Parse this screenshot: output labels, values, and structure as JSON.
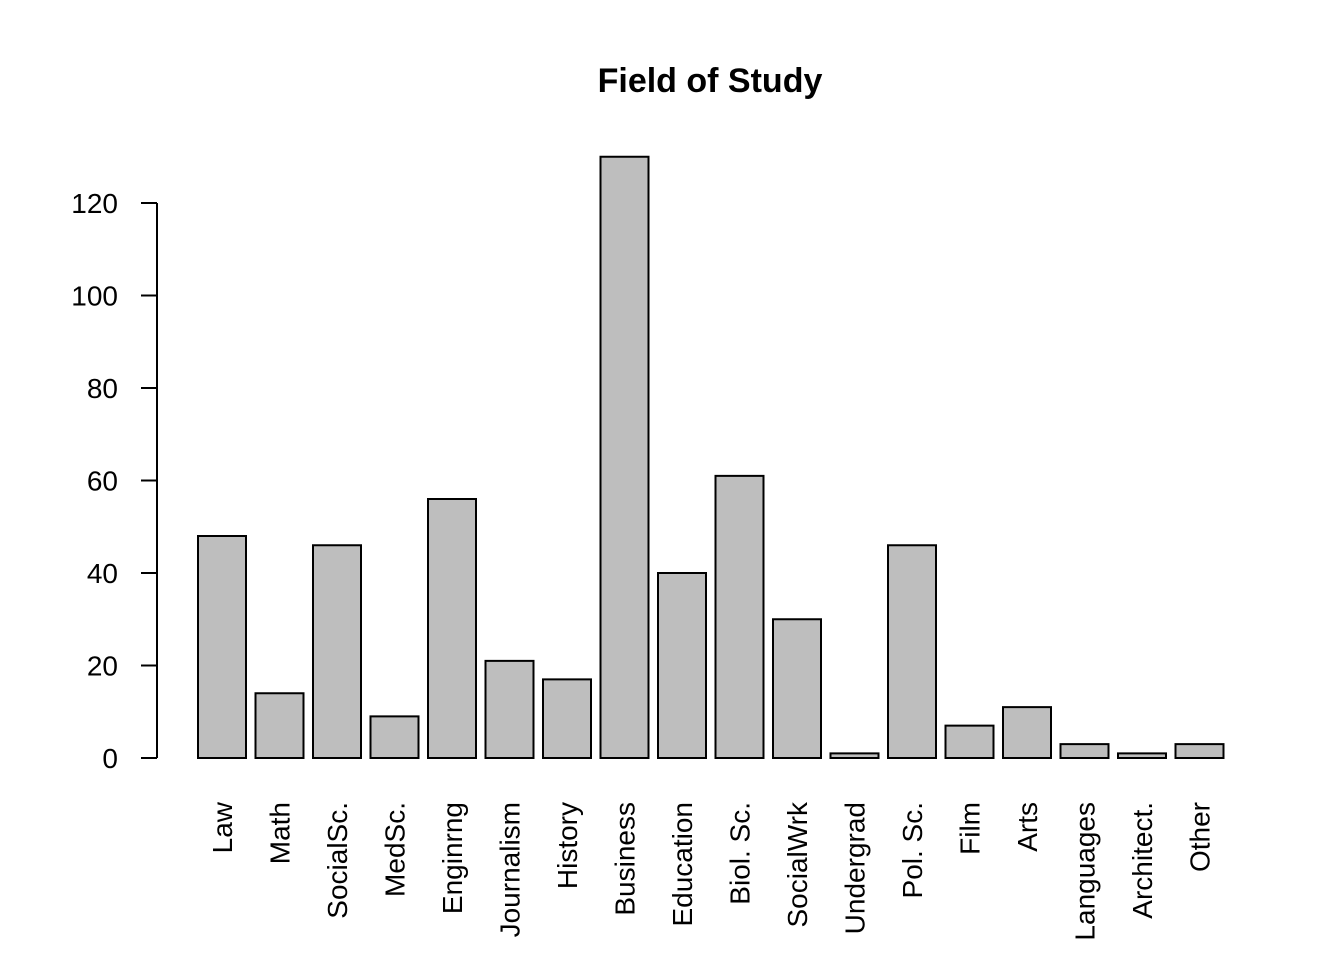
{
  "chart_data": {
    "type": "bar",
    "title": "Field of Study",
    "xlabel": "",
    "ylabel": "",
    "categories": [
      "Law",
      "Math",
      "SocialSc.",
      "MedSc.",
      "Enginrng",
      "Journalism",
      "History",
      "Business",
      "Education",
      "Biol. Sc.",
      "SocialWrk",
      "Undergrad",
      "Pol. Sc.",
      "Film",
      "Arts",
      "Languages",
      "Architect.",
      "Other"
    ],
    "values": [
      48,
      14,
      46,
      9,
      56,
      21,
      17,
      130,
      40,
      61,
      30,
      1,
      46,
      7,
      11,
      3,
      1,
      3
    ],
    "ylim": [
      0,
      130
    ],
    "yticks": [
      0,
      20,
      40,
      60,
      80,
      100,
      120
    ],
    "bar_color": "#bebebe",
    "grid": false,
    "legend": "none"
  }
}
